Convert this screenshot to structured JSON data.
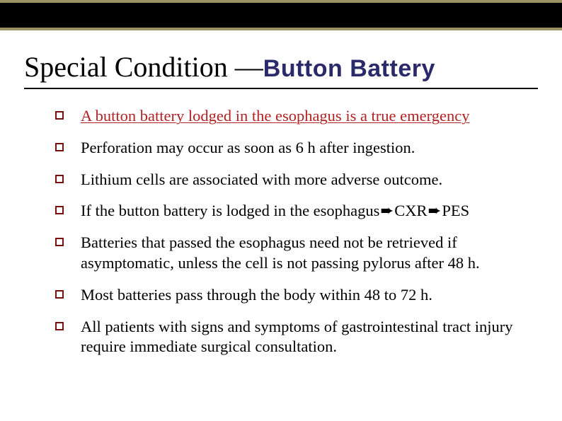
{
  "banner": {
    "background": "#000000",
    "borderColor": "#9a9361"
  },
  "title": {
    "plainPart": "Special Condition — ",
    "accentPart": "Button Battery",
    "accentColor": "#2a2a6a"
  },
  "bulletMarker": {
    "borderColor": "#7a0f0f"
  },
  "bullets": [
    {
      "text": "A button battery lodged in the esophagus is a true emergency",
      "highlighted": true
    },
    {
      "text": "Perforation may occur as soon as 6 h after ingestion.",
      "highlighted": false
    },
    {
      "text": "Lithium cells are associated with more adverse outcome.",
      "highlighted": false
    },
    {
      "segments": [
        "If the button battery is lodged in the esophagus",
        "➨",
        "CXR",
        "➨",
        "PES"
      ],
      "highlighted": false
    },
    {
      "text": "Batteries that passed the esophagus need not be retrieved if asymptomatic, unless the cell is not passing pylorus after 48 h.",
      "highlighted": false
    },
    {
      "text": "Most batteries pass through the body within 48 to 72 h.",
      "highlighted": false
    },
    {
      "text": "All patients with signs and symptoms of gastrointestinal tract injury require immediate surgical consultation.",
      "highlighted": false
    }
  ]
}
